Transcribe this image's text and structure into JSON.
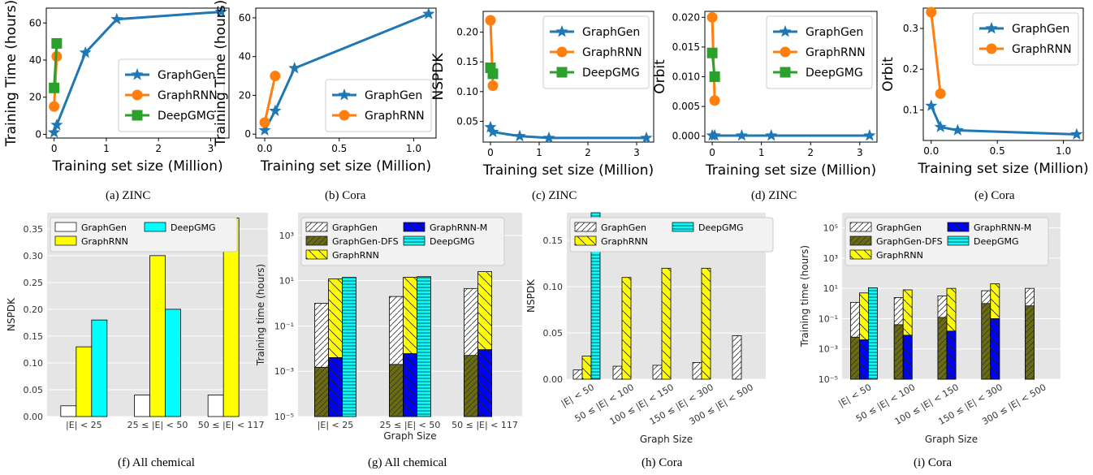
{
  "chart_data": [
    {
      "id": "a",
      "type": "line",
      "caption": "(a)  ZINC",
      "xlabel": "Training set size (Million)",
      "ylabel": "Training Time (hours)",
      "xlim": [
        -0.15,
        3.35
      ],
      "ylim": [
        -2,
        68
      ],
      "xticks": [
        0,
        1,
        2,
        3
      ],
      "yticks": [
        0,
        20,
        40,
        60
      ],
      "legend_position": "lower-right",
      "series": [
        {
          "name": "GraphGen",
          "color": "#1f77b4",
          "marker": "star",
          "x": [
            0.0,
            0.05,
            0.6,
            1.2,
            3.2
          ],
          "y": [
            1,
            5,
            44,
            62,
            66
          ]
        },
        {
          "name": "GraphRNN",
          "color": "#ff7f0e",
          "marker": "circle",
          "x": [
            0.0,
            0.05
          ],
          "y": [
            15,
            42
          ]
        },
        {
          "name": "DeepGMG",
          "color": "#2ca02c",
          "marker": "square",
          "x": [
            0.0,
            0.05
          ],
          "y": [
            25,
            49
          ]
        }
      ]
    },
    {
      "id": "b",
      "type": "line",
      "caption": "(b)  Cora",
      "xlabel": "Training set size (Million)",
      "ylabel": "Training Time (hours)",
      "xlim": [
        -0.06,
        1.15
      ],
      "ylim": [
        -2,
        65
      ],
      "xticks": [
        0,
        0.5,
        1
      ],
      "yticks": [
        0,
        20,
        40,
        60
      ],
      "xticklabels": [
        "0.0",
        "0.5",
        "1.0"
      ],
      "legend_position": "lower-right",
      "series": [
        {
          "name": "GraphGen",
          "color": "#1f77b4",
          "marker": "star",
          "x": [
            0.0,
            0.07,
            0.2,
            1.1
          ],
          "y": [
            2,
            12,
            34,
            62
          ]
        },
        {
          "name": "GraphRNN",
          "color": "#ff7f0e",
          "marker": "circle",
          "x": [
            0.0,
            0.07
          ],
          "y": [
            6,
            30
          ]
        }
      ]
    },
    {
      "id": "c",
      "type": "line",
      "caption": "(c)  ZINC",
      "xlabel": "Training set size (Million)",
      "ylabel": "NSPDK",
      "xlim": [
        -0.15,
        3.35
      ],
      "ylim": [
        0.015,
        0.235
      ],
      "xticks": [
        0,
        1,
        2,
        3
      ],
      "yticks": [
        0.05,
        0.1,
        0.15,
        0.2
      ],
      "yticklabels": [
        "0.05",
        "0.10",
        "0.15",
        "0.20"
      ],
      "legend_position": "upper-right",
      "series": [
        {
          "name": "GraphGen",
          "color": "#1f77b4",
          "marker": "star",
          "x": [
            0.0,
            0.05,
            0.6,
            1.2,
            3.2
          ],
          "y": [
            0.04,
            0.032,
            0.025,
            0.022,
            0.022
          ]
        },
        {
          "name": "GraphRNN",
          "color": "#ff7f0e",
          "marker": "circle",
          "x": [
            0.0,
            0.05
          ],
          "y": [
            0.22,
            0.11
          ]
        },
        {
          "name": "DeepGMG",
          "color": "#2ca02c",
          "marker": "square",
          "x": [
            0.0,
            0.05
          ],
          "y": [
            0.14,
            0.13
          ]
        }
      ]
    },
    {
      "id": "d",
      "type": "line",
      "caption": "(d)  ZINC",
      "xlabel": "Training set size (Million)",
      "ylabel": "Orbit",
      "xlim": [
        -0.15,
        3.35
      ],
      "ylim": [
        -0.001,
        0.021
      ],
      "xticks": [
        0,
        1,
        2,
        3
      ],
      "yticks": [
        0,
        0.005,
        0.01,
        0.015,
        0.02
      ],
      "yticklabels": [
        "0.000",
        "0.005",
        "0.010",
        "0.015",
        "0.020"
      ],
      "legend_position": "upper-right",
      "series": [
        {
          "name": "GraphGen",
          "color": "#1f77b4",
          "marker": "star",
          "x": [
            0.0,
            0.05,
            0.6,
            1.2,
            3.2
          ],
          "y": [
            0.0001,
            0.0001,
            0.0001,
            0.0001,
            0.0001
          ]
        },
        {
          "name": "GraphRNN",
          "color": "#ff7f0e",
          "marker": "circle",
          "x": [
            0.0,
            0.05
          ],
          "y": [
            0.02,
            0.006
          ]
        },
        {
          "name": "DeepGMG",
          "color": "#2ca02c",
          "marker": "square",
          "x": [
            0.0,
            0.05
          ],
          "y": [
            0.014,
            0.01
          ]
        }
      ]
    },
    {
      "id": "e",
      "type": "line",
      "caption": "(e)  Cora",
      "xlabel": "Training set size (Million)",
      "ylabel": "Orbit",
      "xlim": [
        -0.06,
        1.15
      ],
      "ylim": [
        0.025,
        0.35
      ],
      "xticks": [
        0,
        0.5,
        1
      ],
      "yticks": [
        0.1,
        0.2,
        0.3
      ],
      "xticklabels": [
        "0.0",
        "0.5",
        "1.0"
      ],
      "yticklabels": [
        "0.1",
        "0.2",
        "0.3"
      ],
      "legend_position": "upper-right",
      "series": [
        {
          "name": "GraphGen",
          "color": "#1f77b4",
          "marker": "star",
          "x": [
            0.0,
            0.07,
            0.2,
            1.1
          ],
          "y": [
            0.11,
            0.058,
            0.05,
            0.04
          ]
        },
        {
          "name": "GraphRNN",
          "color": "#ff7f0e",
          "marker": "circle",
          "x": [
            0.0,
            0.07
          ],
          "y": [
            0.34,
            0.14
          ]
        }
      ]
    },
    {
      "id": "f",
      "type": "bar",
      "caption": "(f)  All chemical",
      "xlabel": "",
      "ylabel": "NSPDK",
      "ylim": [
        0,
        0.38
      ],
      "yticks": [
        0,
        0.05,
        0.1,
        0.15,
        0.2,
        0.25,
        0.3,
        0.35
      ],
      "yticklabels": [
        "0.00",
        "0.05",
        "0.10",
        "0.15",
        "0.20",
        "0.25",
        "0.30",
        "0.35"
      ],
      "categories": [
        "|E| < 25",
        "25 ≤ |E| < 50",
        "50 ≤ |E| < 117"
      ],
      "legend_position": "top",
      "series": [
        {
          "name": "GraphGen",
          "color": "#ffffff",
          "hatch": "none",
          "values": [
            0.02,
            0.04,
            0.04
          ]
        },
        {
          "name": "GraphRNN",
          "color": "#ffff00",
          "hatch": "none",
          "values": [
            0.13,
            0.3,
            0.37
          ]
        },
        {
          "name": "DeepGMG",
          "color": "#00ffff",
          "hatch": "none",
          "values": [
            0.18,
            0.2,
            null
          ]
        }
      ]
    },
    {
      "id": "g",
      "type": "bar",
      "caption": "(g)  All chemical",
      "xlabel": "Graph Size",
      "ylabel": "Training time (hours)",
      "yscale": "log",
      "ylim": [
        1e-05,
        10000
      ],
      "yticks": [
        1e-05,
        0.001,
        0.1,
        10,
        1000
      ],
      "yticklabels": [
        "10⁻⁵",
        "10⁻³",
        "10⁻¹",
        "10¹",
        "10³"
      ],
      "categories": [
        "|E| < 25",
        "25 ≤ |E| < 50",
        "50 ≤ |E| < 117"
      ],
      "legend_position": "top",
      "series": [
        {
          "name": "GraphGen",
          "color": "#ffffff",
          "hatch": "diag",
          "stack": "gg",
          "values": [
            1.0,
            2.0,
            4.5
          ]
        },
        {
          "name": "GraphGen-DFS",
          "color": "#6b6b12",
          "hatch": "diag",
          "stack": "gg",
          "values": [
            0.0015,
            0.002,
            0.005
          ]
        },
        {
          "name": "GraphRNN",
          "color": "#ffff00",
          "hatch": "back",
          "stack": "gr",
          "values": [
            12,
            14,
            25
          ]
        },
        {
          "name": "GraphRNN-M",
          "color": "#0000ff",
          "hatch": "back",
          "stack": "gr",
          "values": [
            0.004,
            0.006,
            0.009
          ]
        },
        {
          "name": "DeepGMG",
          "color": "#00ffff",
          "hatch": "horiz",
          "stack": "dg",
          "values": [
            14,
            15,
            null
          ]
        }
      ]
    },
    {
      "id": "h",
      "type": "bar",
      "caption": "(h)  Cora",
      "xlabel": "Graph Size",
      "ylabel": "NSPDK",
      "ylim": [
        0,
        0.18
      ],
      "yticks": [
        0,
        0.05,
        0.1,
        0.15
      ],
      "yticklabels": [
        "0.00",
        "0.05",
        "0.10",
        "0.15"
      ],
      "categories": [
        "|E| < 50",
        "50 ≤ |E| < 100",
        "100 ≤ |E| < 150",
        "150 ≤ |E| < 300",
        "300 ≤ |E| < 500"
      ],
      "legend_position": "top",
      "series": [
        {
          "name": "GraphGen",
          "color": "#ffffff",
          "hatch": "diag",
          "values": [
            0.01,
            0.014,
            0.015,
            0.018,
            0.047
          ]
        },
        {
          "name": "GraphRNN",
          "color": "#ffff00",
          "hatch": "back",
          "values": [
            0.025,
            0.11,
            0.12,
            0.12,
            null
          ]
        },
        {
          "name": "DeepGMG",
          "color": "#00ffff",
          "hatch": "horiz",
          "values": [
            0.18,
            null,
            null,
            null,
            null
          ]
        }
      ]
    },
    {
      "id": "i",
      "type": "bar",
      "caption": "(i)  Cora",
      "xlabel": "Graph Size",
      "ylabel": "Training time (hours)",
      "yscale": "log",
      "ylim": [
        1e-05,
        1000000
      ],
      "yticks": [
        1e-05,
        0.001,
        0.1,
        10,
        1000,
        100000
      ],
      "yticklabels": [
        "10⁻⁵",
        "10⁻³",
        "10⁻¹",
        "10¹",
        "10³",
        "10⁵"
      ],
      "categories": [
        "|E| < 50",
        "50 ≤ |E| < 100",
        "100 ≤ |E| < 150",
        "150 ≤ |E| < 300",
        "300 ≤ |E| < 500"
      ],
      "legend_position": "top",
      "series": [
        {
          "name": "GraphGen",
          "color": "#ffffff",
          "hatch": "diag",
          "stack": "gg",
          "values": [
            1.2,
            2.5,
            3.2,
            7,
            10
          ]
        },
        {
          "name": "GraphGen-DFS",
          "color": "#6b6b12",
          "hatch": "diag",
          "stack": "gg",
          "values": [
            0.006,
            0.04,
            0.12,
            1.0,
            0.7
          ]
        },
        {
          "name": "GraphRNN",
          "color": "#ffff00",
          "hatch": "back",
          "stack": "gr",
          "values": [
            5,
            8,
            10,
            20,
            null
          ]
        },
        {
          "name": "GraphRNN-M",
          "color": "#0000ff",
          "hatch": "back",
          "stack": "gr",
          "values": [
            0.004,
            0.008,
            0.015,
            0.1,
            null
          ]
        },
        {
          "name": "DeepGMG",
          "color": "#00ffff",
          "hatch": "horiz",
          "stack": "dg",
          "values": [
            11,
            null,
            null,
            null,
            null
          ]
        }
      ]
    }
  ]
}
